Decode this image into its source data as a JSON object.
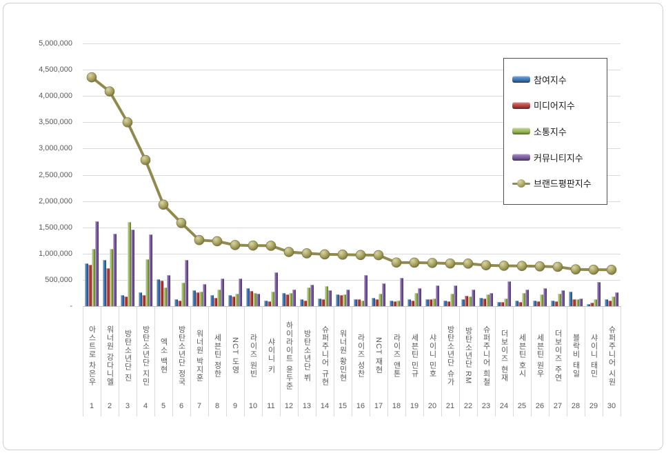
{
  "chart_data": {
    "type": "combo",
    "title": "",
    "xlabel": "",
    "ylabel": "",
    "grid": true,
    "legend_position": "top-right",
    "y_axis": {
      "min": 0,
      "max": 5000000,
      "step": 500000,
      "tick_labels": [
        "5,000,000",
        "4,500,000",
        "4,000,000",
        "3,500,000",
        "3,000,000",
        "2,500,000",
        "2,000,000",
        "1,500,000",
        "1,000,000",
        "500,000",
        "-"
      ]
    },
    "categories": [
      "아스트로 차은우",
      "워너원 강다니엘",
      "방탄소년단 진",
      "방탄소년단 지민",
      "엑소 백현",
      "방탄소년단 정국",
      "워너원 박지훈",
      "세븐틴 정한",
      "NCT 도영",
      "라이즈 원빈",
      "샤이니 키",
      "하이라이트 윤두준",
      "방탄소년단 뷔",
      "슈퍼주니어 규현",
      "워너원 황민현",
      "라이즈 성찬",
      "NCT 재현",
      "라이즈 앤톤",
      "세븐틴 민규",
      "샤이니 민호",
      "방탄소년단 슈가",
      "방탄소년단 RM",
      "슈퍼주니어 희철",
      "더보이즈 현재",
      "세븐틴 호시",
      "세븐틴 원우",
      "더보이즈 주연",
      "블락비 태일",
      "샤이니 태민",
      "슈퍼주니어 시원"
    ],
    "ranks": [
      "1",
      "2",
      "3",
      "4",
      "5",
      "6",
      "7",
      "8",
      "9",
      "10",
      "11",
      "12",
      "13",
      "14",
      "15",
      "16",
      "17",
      "18",
      "19",
      "20",
      "21",
      "22",
      "23",
      "24",
      "25",
      "26",
      "27",
      "28",
      "29",
      "30"
    ],
    "series": [
      {
        "name": "참여지수",
        "type": "bar",
        "color": "#4077b8",
        "color_light": "#7aa9d6",
        "color_dark": "#2e5a8f",
        "values": [
          810000,
          875000,
          210000,
          265000,
          510000,
          130000,
          300000,
          215000,
          215000,
          340000,
          110000,
          250000,
          125000,
          145000,
          225000,
          135000,
          160000,
          110000,
          125000,
          135000,
          105000,
          125000,
          155000,
          80000,
          105000,
          105000,
          110000,
          280000,
          45000,
          125000
        ]
      },
      {
        "name": "미디어지수",
        "type": "bar",
        "color": "#b8413e",
        "color_light": "#d98380",
        "color_dark": "#8e302e",
        "values": [
          790000,
          720000,
          190000,
          210000,
          485000,
          110000,
          265000,
          155000,
          190000,
          295000,
          95000,
          225000,
          110000,
          125000,
          215000,
          125000,
          125000,
          95000,
          110000,
          130000,
          90000,
          195000,
          145000,
          75000,
          80000,
          90000,
          95000,
          135000,
          60000,
          110000
        ]
      },
      {
        "name": "소통지수",
        "type": "bar",
        "color": "#9aba58",
        "color_light": "#c3d69b",
        "color_dark": "#769141",
        "values": [
          1090000,
          1085000,
          1595000,
          890000,
          350000,
          440000,
          280000,
          315000,
          235000,
          255000,
          280000,
          255000,
          355000,
          385000,
          220000,
          110000,
          240000,
          105000,
          245000,
          140000,
          230000,
          185000,
          220000,
          145000,
          245000,
          220000,
          235000,
          135000,
          125000,
          185000
        ]
      },
      {
        "name": "커뮤니티지수",
        "type": "bar",
        "color": "#7a5da2",
        "color_light": "#a98fc6",
        "color_dark": "#5c4579",
        "values": [
          1620000,
          1380000,
          1460000,
          1370000,
          590000,
          880000,
          420000,
          520000,
          530000,
          240000,
          640000,
          320000,
          410000,
          300000,
          320000,
          590000,
          430000,
          540000,
          345000,
          395000,
          390000,
          310000,
          250000,
          475000,
          320000,
          340000,
          300000,
          140000,
          455000,
          265000
        ]
      },
      {
        "name": "브랜드평판지수",
        "type": "line",
        "color": "#8f8a4d",
        "marker_fill": "#a8a25f",
        "marker_highlight": "#d9d5a6",
        "marker_shadow": "#6f6a3a",
        "values": [
          4355000,
          4086000,
          3499000,
          2781000,
          1932000,
          1584000,
          1257000,
          1235000,
          1162000,
          1153000,
          1149000,
          1031000,
          1005000,
          985000,
          980000,
          974000,
          970000,
          830000,
          828000,
          822000,
          812000,
          809000,
          778000,
          768000,
          765000,
          757000,
          748000,
          700000,
          694000,
          692000
        ]
      }
    ]
  }
}
